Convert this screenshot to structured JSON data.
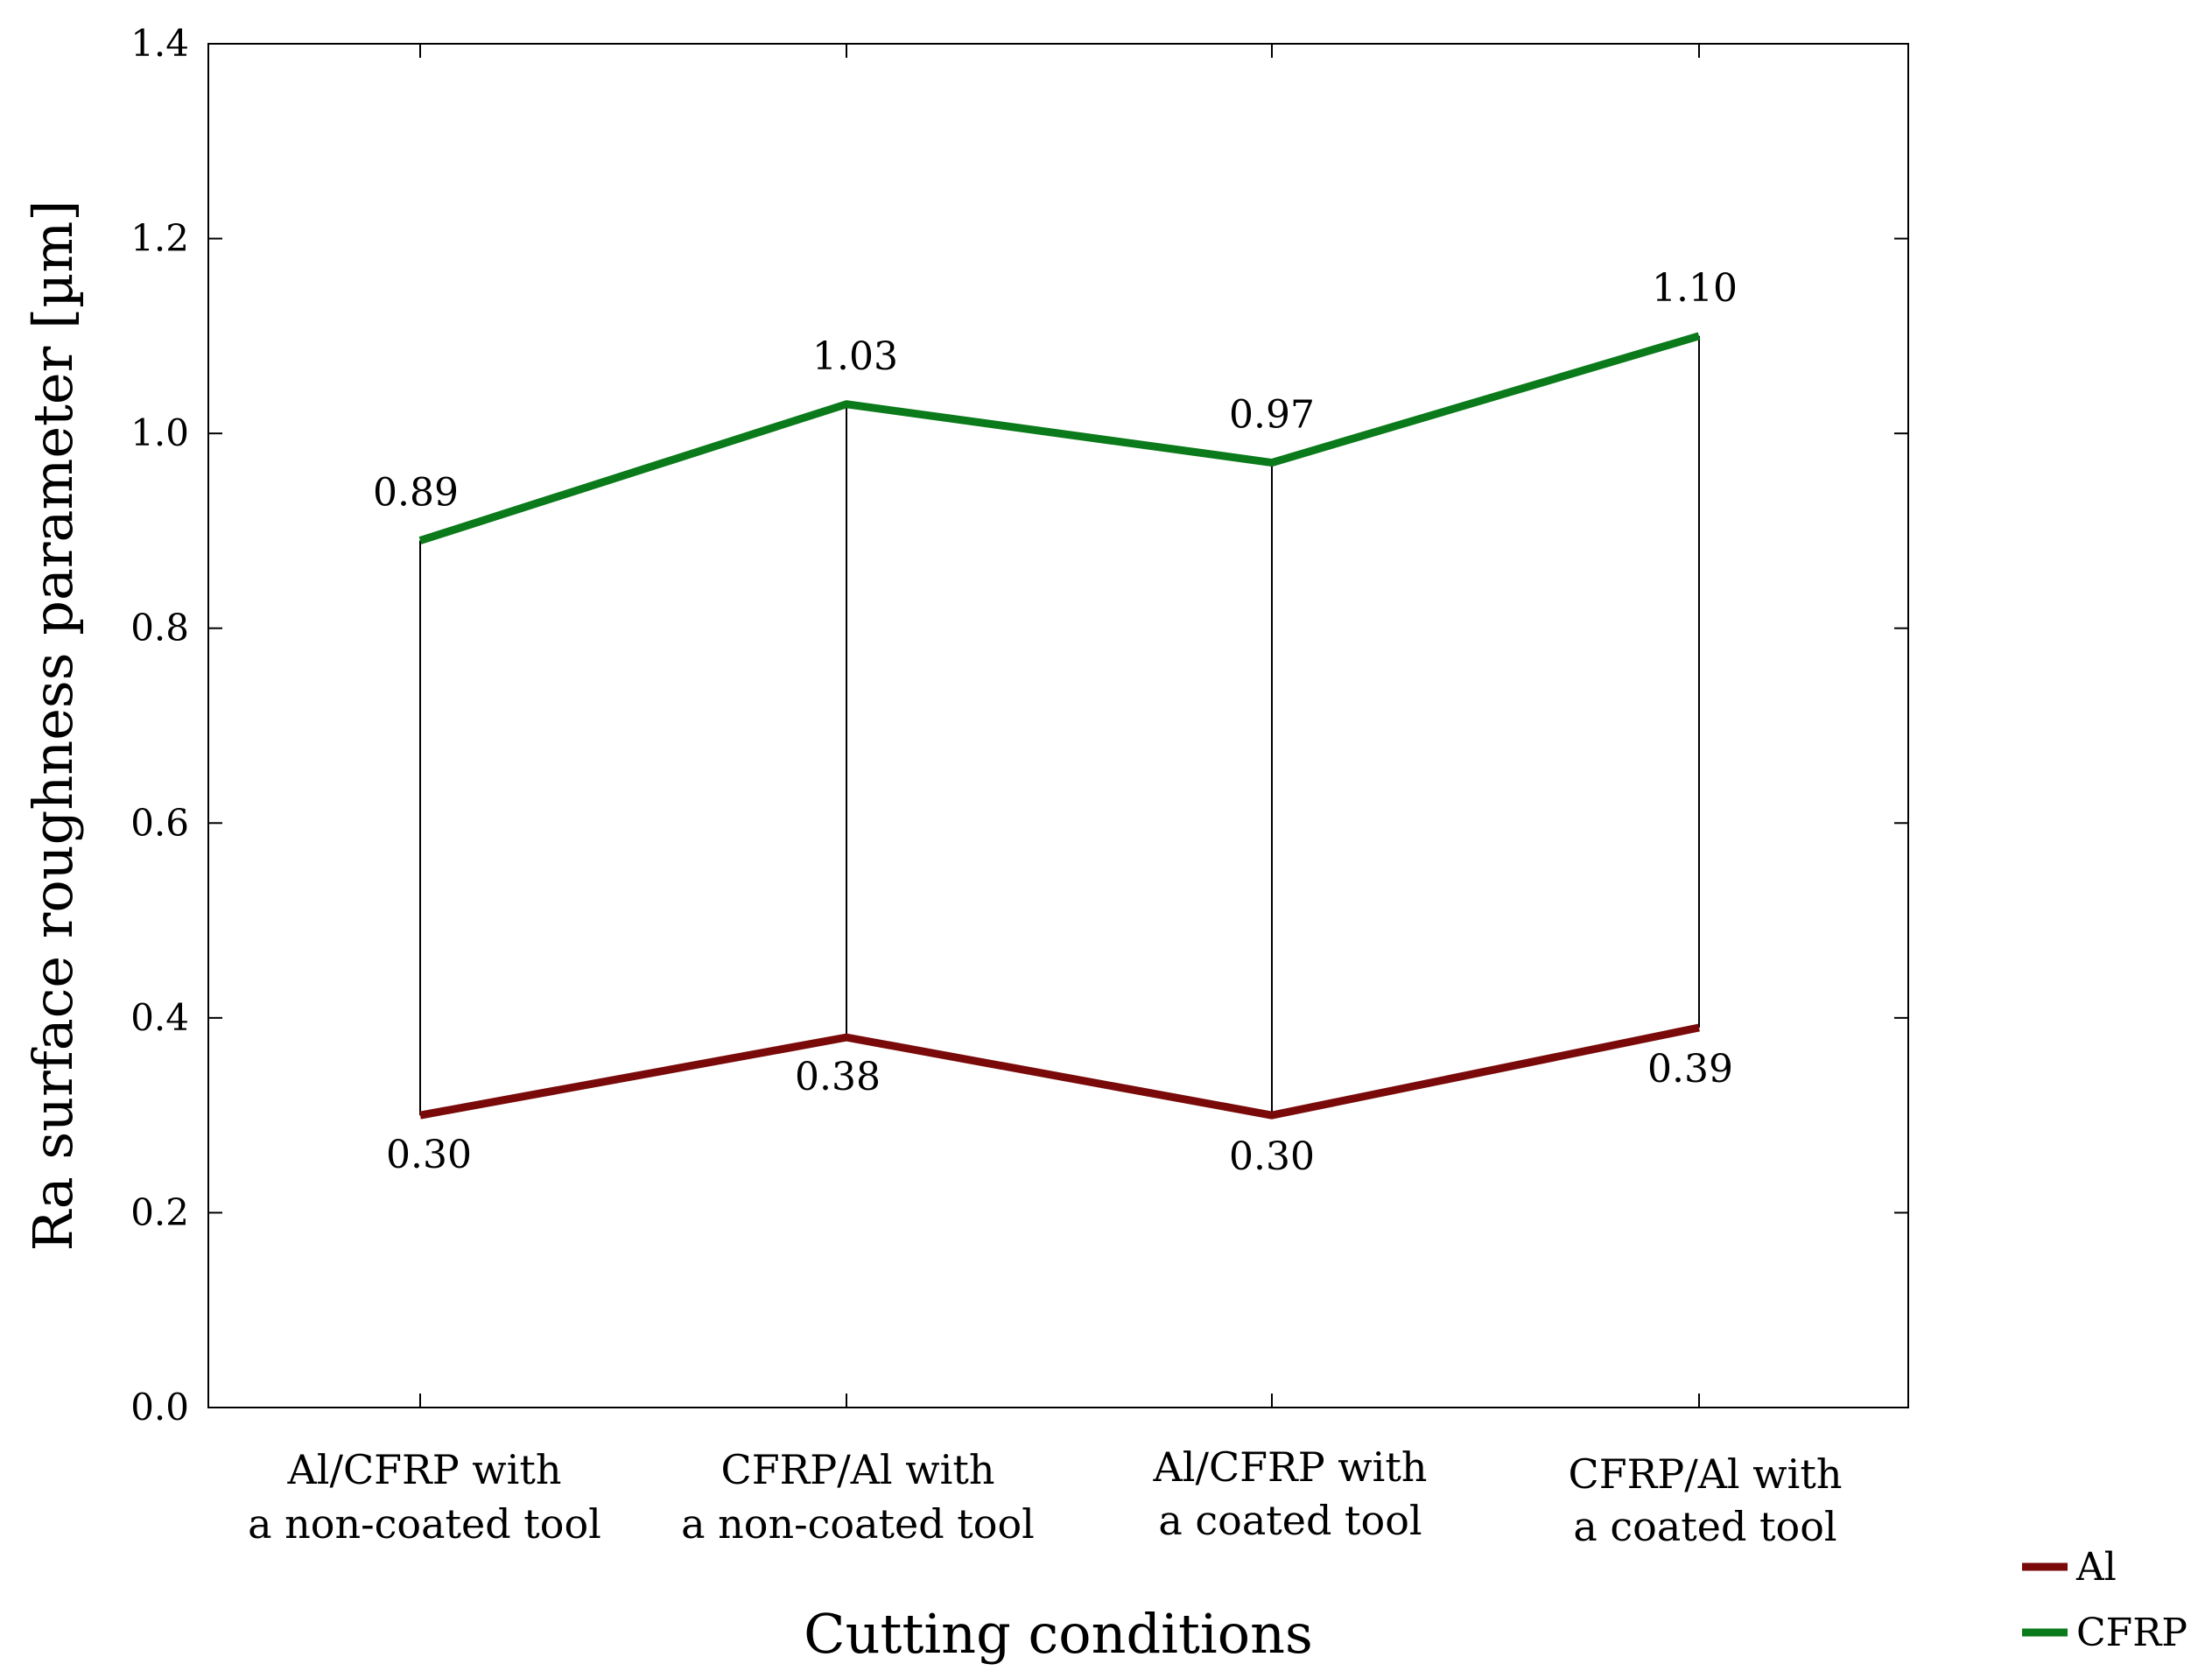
{
  "chart_data": {
    "type": "line",
    "title": "",
    "xlabel": "Cutting conditions",
    "ylabel": "Ra surface roughness parameter [µm]",
    "ylim": [
      0,
      1.4
    ],
    "yticks": [
      "0.0",
      "0.2",
      "0.4",
      "0.6",
      "0.8",
      "1.0",
      "1.2",
      "1.4"
    ],
    "categories": [
      [
        "Al/CFRP with",
        "a non-coated tool"
      ],
      [
        "CFRP/Al with",
        "a non-coated tool"
      ],
      [
        "Al/CFRP with",
        "a coated tool"
      ],
      [
        "CFRP/Al with",
        "a coated tool"
      ]
    ],
    "series": [
      {
        "name": "Al",
        "color": "#7a0a0a",
        "values": [
          0.3,
          0.38,
          0.3,
          0.39
        ],
        "labels": [
          "0.30",
          "0.38",
          "0.30",
          "0.39"
        ]
      },
      {
        "name": "CFRP",
        "color": "#0a7a1a",
        "values": [
          0.89,
          1.03,
          0.97,
          1.1
        ],
        "labels": [
          "0.89",
          "1.03",
          "0.97",
          "1.10"
        ]
      }
    ],
    "grid": false,
    "legend_position": "bottom-right"
  }
}
